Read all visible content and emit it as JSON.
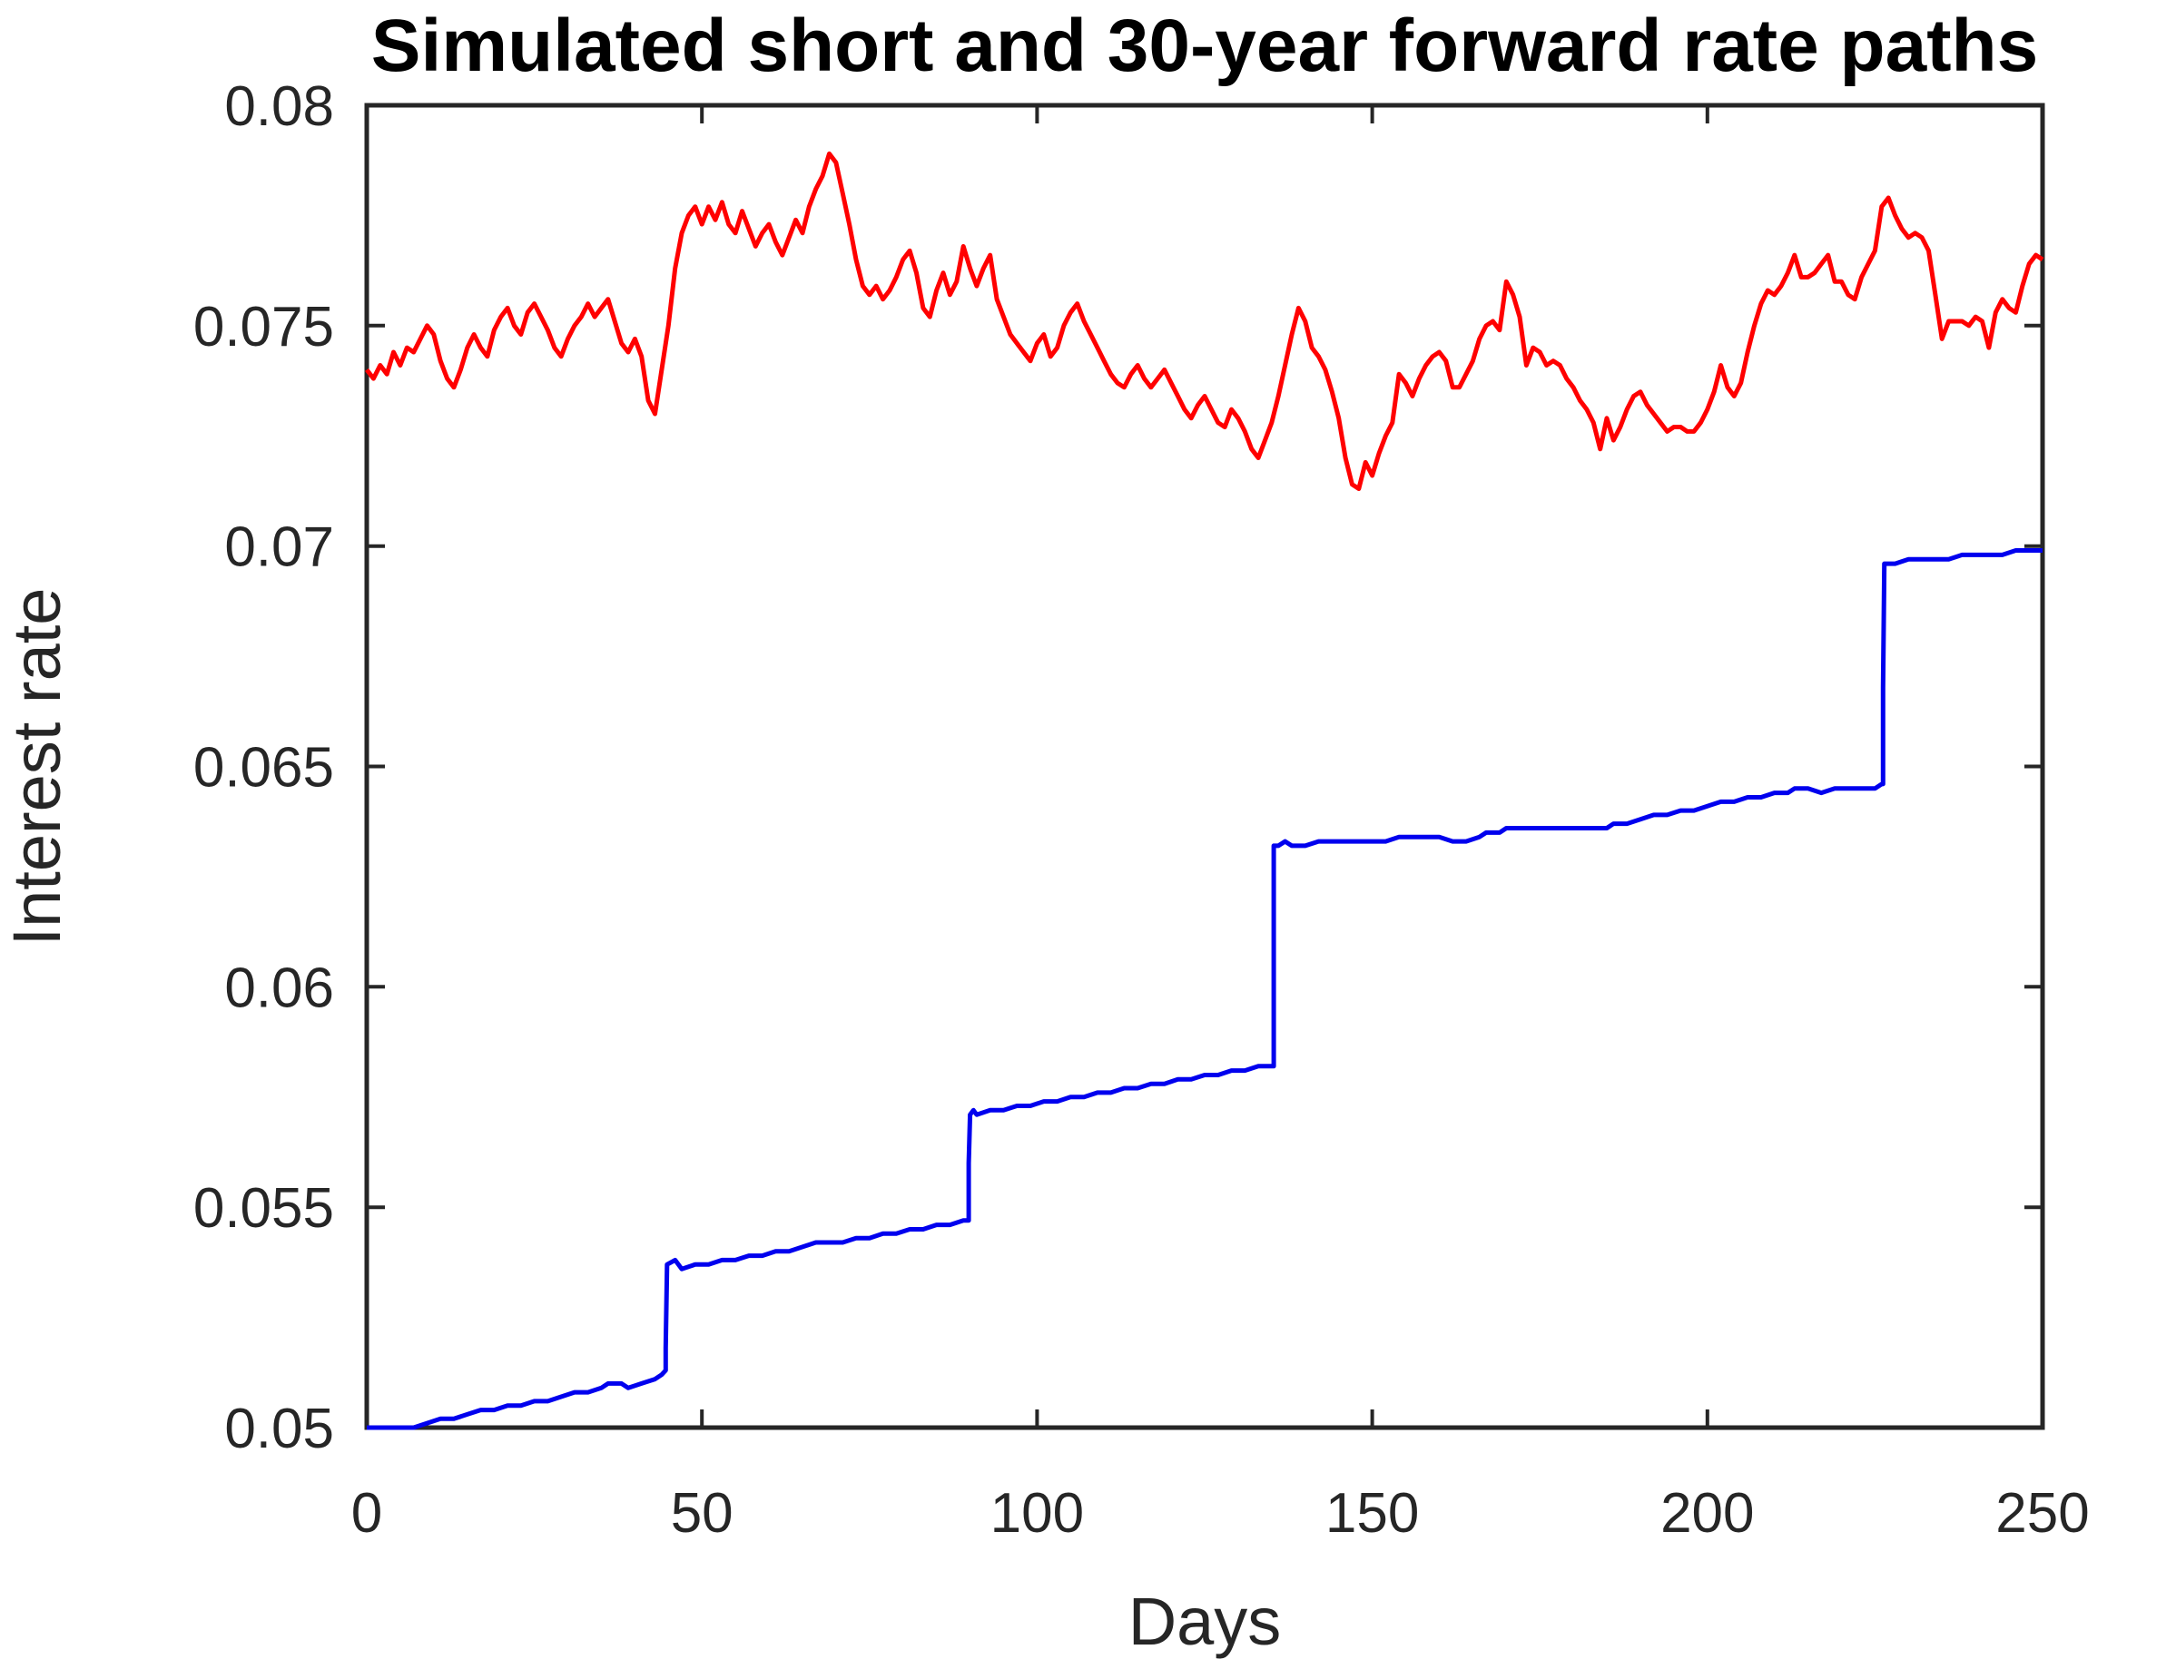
{
  "chart_data": {
    "type": "line",
    "title": "Simulated short and 30-year forward rate paths",
    "xlabel": "Days",
    "ylabel": "Interest rate",
    "xlim": [
      0,
      250
    ],
    "ylim": [
      0.05,
      0.08
    ],
    "xticks": [
      0,
      50,
      100,
      150,
      200,
      250
    ],
    "xticklabels": [
      "0",
      "50",
      "100",
      "150",
      "200",
      "250"
    ],
    "yticks": [
      0.05,
      0.055,
      0.06,
      0.065,
      0.07,
      0.075,
      0.08
    ],
    "yticklabels": [
      "0.05",
      "0.055",
      "0.06",
      "0.065",
      "0.07",
      "0.075",
      "0.08"
    ],
    "grid": false,
    "legend": "none",
    "box": true,
    "colors": {
      "forward_rate_line": "#ff0000",
      "short_rate_line": "#0000ee",
      "axes": "#262626",
      "title_text": "#000000"
    },
    "series": [
      {
        "id": "forward-rate-red",
        "label": "30-year forward rate path",
        "color_key": "forward_rate_line",
        "x_start": 0,
        "x_step": 1,
        "values": [
          0.074,
          0.0738,
          0.0741,
          0.0739,
          0.0744,
          0.0741,
          0.0745,
          0.0744,
          0.0747,
          0.075,
          0.0748,
          0.0742,
          0.0738,
          0.0736,
          0.074,
          0.0745,
          0.0748,
          0.0745,
          0.0743,
          0.0749,
          0.0752,
          0.0754,
          0.075,
          0.0748,
          0.0753,
          0.0755,
          0.0752,
          0.0749,
          0.0745,
          0.0743,
          0.0747,
          0.075,
          0.0752,
          0.0755,
          0.0752,
          0.0754,
          0.0756,
          0.0751,
          0.0746,
          0.0744,
          0.0747,
          0.0743,
          0.0733,
          0.073,
          0.074,
          0.075,
          0.0763,
          0.0771,
          0.0775,
          0.0777,
          0.0773,
          0.0777,
          0.0774,
          0.0778,
          0.0773,
          0.0771,
          0.0776,
          0.0772,
          0.0768,
          0.0771,
          0.0773,
          0.0769,
          0.0766,
          0.077,
          0.0774,
          0.0771,
          0.0777,
          0.0781,
          0.0784,
          0.0789,
          0.0787,
          0.078,
          0.0773,
          0.0765,
          0.0759,
          0.0757,
          0.0759,
          0.0756,
          0.0758,
          0.0761,
          0.0765,
          0.0767,
          0.0762,
          0.0754,
          0.0752,
          0.0758,
          0.0762,
          0.0757,
          0.076,
          0.0768,
          0.0763,
          0.0759,
          0.0763,
          0.0766,
          0.0756,
          0.0752,
          0.0748,
          0.0746,
          0.0744,
          0.0742,
          0.0746,
          0.0748,
          0.0743,
          0.0745,
          0.075,
          0.0753,
          0.0755,
          0.0751,
          0.0748,
          0.0745,
          0.0742,
          0.0739,
          0.0737,
          0.0736,
          0.0739,
          0.0741,
          0.0738,
          0.0736,
          0.0738,
          0.074,
          0.0737,
          0.0734,
          0.0731,
          0.0729,
          0.0732,
          0.0734,
          0.0731,
          0.0728,
          0.0727,
          0.0731,
          0.0729,
          0.0726,
          0.0722,
          0.072,
          0.0724,
          0.0728,
          0.0734,
          0.0741,
          0.0748,
          0.0754,
          0.0751,
          0.0745,
          0.0743,
          0.074,
          0.0735,
          0.0729,
          0.072,
          0.0714,
          0.0713,
          0.0719,
          0.0716,
          0.0721,
          0.0725,
          0.0728,
          0.0739,
          0.0737,
          0.0734,
          0.0738,
          0.0741,
          0.0743,
          0.0744,
          0.0742,
          0.0736,
          0.0736,
          0.0739,
          0.0742,
          0.0747,
          0.075,
          0.0751,
          0.0749,
          0.076,
          0.0757,
          0.0752,
          0.0741,
          0.0745,
          0.0744,
          0.0741,
          0.0742,
          0.0741,
          0.0738,
          0.0736,
          0.0733,
          0.0731,
          0.0728,
          0.0722,
          0.0729,
          0.0724,
          0.0727,
          0.0731,
          0.0734,
          0.0735,
          0.0732,
          0.073,
          0.0728,
          0.0726,
          0.0727,
          0.0727,
          0.0726,
          0.0726,
          0.0728,
          0.0731,
          0.0735,
          0.0741,
          0.0736,
          0.0734,
          0.0737,
          0.0744,
          0.075,
          0.0755,
          0.0758,
          0.0757,
          0.0759,
          0.0762,
          0.0766,
          0.0761,
          0.0761,
          0.0762,
          0.0764,
          0.0766,
          0.076,
          0.076,
          0.0757,
          0.0756,
          0.0761,
          0.0764,
          0.0767,
          0.0777,
          0.0779,
          0.0775,
          0.0772,
          0.077,
          0.0771,
          0.077,
          0.0767,
          0.0757,
          0.0747,
          0.0751,
          0.0751,
          0.0751,
          0.075,
          0.0752,
          0.0751,
          0.0745,
          0.0753,
          0.0756,
          0.0754,
          0.0753,
          0.0759,
          0.0764,
          0.0766,
          0.0765
        ]
      },
      {
        "id": "short-rate-blue",
        "label": "short rate path",
        "color_key": "short_rate_line",
        "points": [
          [
            0,
            0.05
          ],
          [
            4,
            0.05
          ],
          [
            7,
            0.05
          ],
          [
            9,
            0.0501
          ],
          [
            11,
            0.0502
          ],
          [
            13,
            0.0502
          ],
          [
            15,
            0.0503
          ],
          [
            17,
            0.0504
          ],
          [
            19,
            0.0504
          ],
          [
            21,
            0.0505
          ],
          [
            23,
            0.0505
          ],
          [
            25,
            0.0506
          ],
          [
            27,
            0.0506
          ],
          [
            29,
            0.0507
          ],
          [
            31,
            0.0508
          ],
          [
            33,
            0.0508
          ],
          [
            35,
            0.0509
          ],
          [
            36,
            0.051
          ],
          [
            38,
            0.051
          ],
          [
            39,
            0.0509
          ],
          [
            41,
            0.051
          ],
          [
            43,
            0.0511
          ],
          [
            44,
            0.0512
          ],
          [
            44.6,
            0.0513
          ],
          [
            44.6,
            0.0518
          ],
          [
            44.8,
            0.0537
          ],
          [
            46,
            0.0538
          ],
          [
            47,
            0.0536
          ],
          [
            49,
            0.0537
          ],
          [
            51,
            0.0537
          ],
          [
            53,
            0.0538
          ],
          [
            55,
            0.0538
          ],
          [
            57,
            0.0539
          ],
          [
            59,
            0.0539
          ],
          [
            61,
            0.054
          ],
          [
            63,
            0.054
          ],
          [
            65,
            0.0541
          ],
          [
            67,
            0.0542
          ],
          [
            69,
            0.0542
          ],
          [
            71,
            0.0542
          ],
          [
            73,
            0.0543
          ],
          [
            75,
            0.0543
          ],
          [
            77,
            0.0544
          ],
          [
            79,
            0.0544
          ],
          [
            81,
            0.0545
          ],
          [
            83,
            0.0545
          ],
          [
            85,
            0.0546
          ],
          [
            87,
            0.0546
          ],
          [
            89,
            0.0547
          ],
          [
            89.8,
            0.0547
          ],
          [
            89.8,
            0.056
          ],
          [
            90,
            0.0571
          ],
          [
            90.5,
            0.0572
          ],
          [
            91,
            0.0571
          ],
          [
            93,
            0.0572
          ],
          [
            95,
            0.0572
          ],
          [
            97,
            0.0573
          ],
          [
            99,
            0.0573
          ],
          [
            101,
            0.0574
          ],
          [
            103,
            0.0574
          ],
          [
            105,
            0.0575
          ],
          [
            107,
            0.0575
          ],
          [
            109,
            0.0576
          ],
          [
            111,
            0.0576
          ],
          [
            113,
            0.0577
          ],
          [
            115,
            0.0577
          ],
          [
            117,
            0.0578
          ],
          [
            119,
            0.0578
          ],
          [
            121,
            0.0579
          ],
          [
            123,
            0.0579
          ],
          [
            125,
            0.058
          ],
          [
            127,
            0.058
          ],
          [
            129,
            0.0581
          ],
          [
            131,
            0.0581
          ],
          [
            133,
            0.0582
          ],
          [
            135.3,
            0.0582
          ],
          [
            135.3,
            0.0632
          ],
          [
            136,
            0.0632
          ],
          [
            137,
            0.0633
          ],
          [
            138,
            0.0632
          ],
          [
            140,
            0.0632
          ],
          [
            142,
            0.0633
          ],
          [
            144,
            0.0633
          ],
          [
            146,
            0.0633
          ],
          [
            148,
            0.0633
          ],
          [
            150,
            0.0633
          ],
          [
            152,
            0.0633
          ],
          [
            154,
            0.0634
          ],
          [
            156,
            0.0634
          ],
          [
            158,
            0.0634
          ],
          [
            160,
            0.0634
          ],
          [
            162,
            0.0633
          ],
          [
            164,
            0.0633
          ],
          [
            166,
            0.0634
          ],
          [
            167,
            0.0635
          ],
          [
            169,
            0.0635
          ],
          [
            170,
            0.0636
          ],
          [
            173,
            0.0636
          ],
          [
            176,
            0.0636
          ],
          [
            179,
            0.0636
          ],
          [
            182,
            0.0636
          ],
          [
            185,
            0.0636
          ],
          [
            186,
            0.0637
          ],
          [
            188,
            0.0637
          ],
          [
            190,
            0.0638
          ],
          [
            192,
            0.0639
          ],
          [
            194,
            0.0639
          ],
          [
            196,
            0.064
          ],
          [
            198,
            0.064
          ],
          [
            200,
            0.0641
          ],
          [
            202,
            0.0642
          ],
          [
            204,
            0.0642
          ],
          [
            206,
            0.0643
          ],
          [
            208,
            0.0643
          ],
          [
            210,
            0.0644
          ],
          [
            212,
            0.0644
          ],
          [
            213,
            0.0645
          ],
          [
            215,
            0.0645
          ],
          [
            217,
            0.0644
          ],
          [
            219,
            0.0645
          ],
          [
            221,
            0.0645
          ],
          [
            223,
            0.0645
          ],
          [
            225,
            0.0645
          ],
          [
            226,
            0.0646
          ],
          [
            226.2,
            0.0646
          ],
          [
            226.2,
            0.0668
          ],
          [
            226.4,
            0.0696
          ],
          [
            228,
            0.0696
          ],
          [
            230,
            0.0697
          ],
          [
            232,
            0.0697
          ],
          [
            234,
            0.0697
          ],
          [
            236,
            0.0697
          ],
          [
            238,
            0.0698
          ],
          [
            240,
            0.0698
          ],
          [
            242,
            0.0698
          ],
          [
            244,
            0.0698
          ],
          [
            246,
            0.0699
          ],
          [
            248,
            0.0699
          ],
          [
            250,
            0.0699
          ]
        ]
      }
    ]
  }
}
